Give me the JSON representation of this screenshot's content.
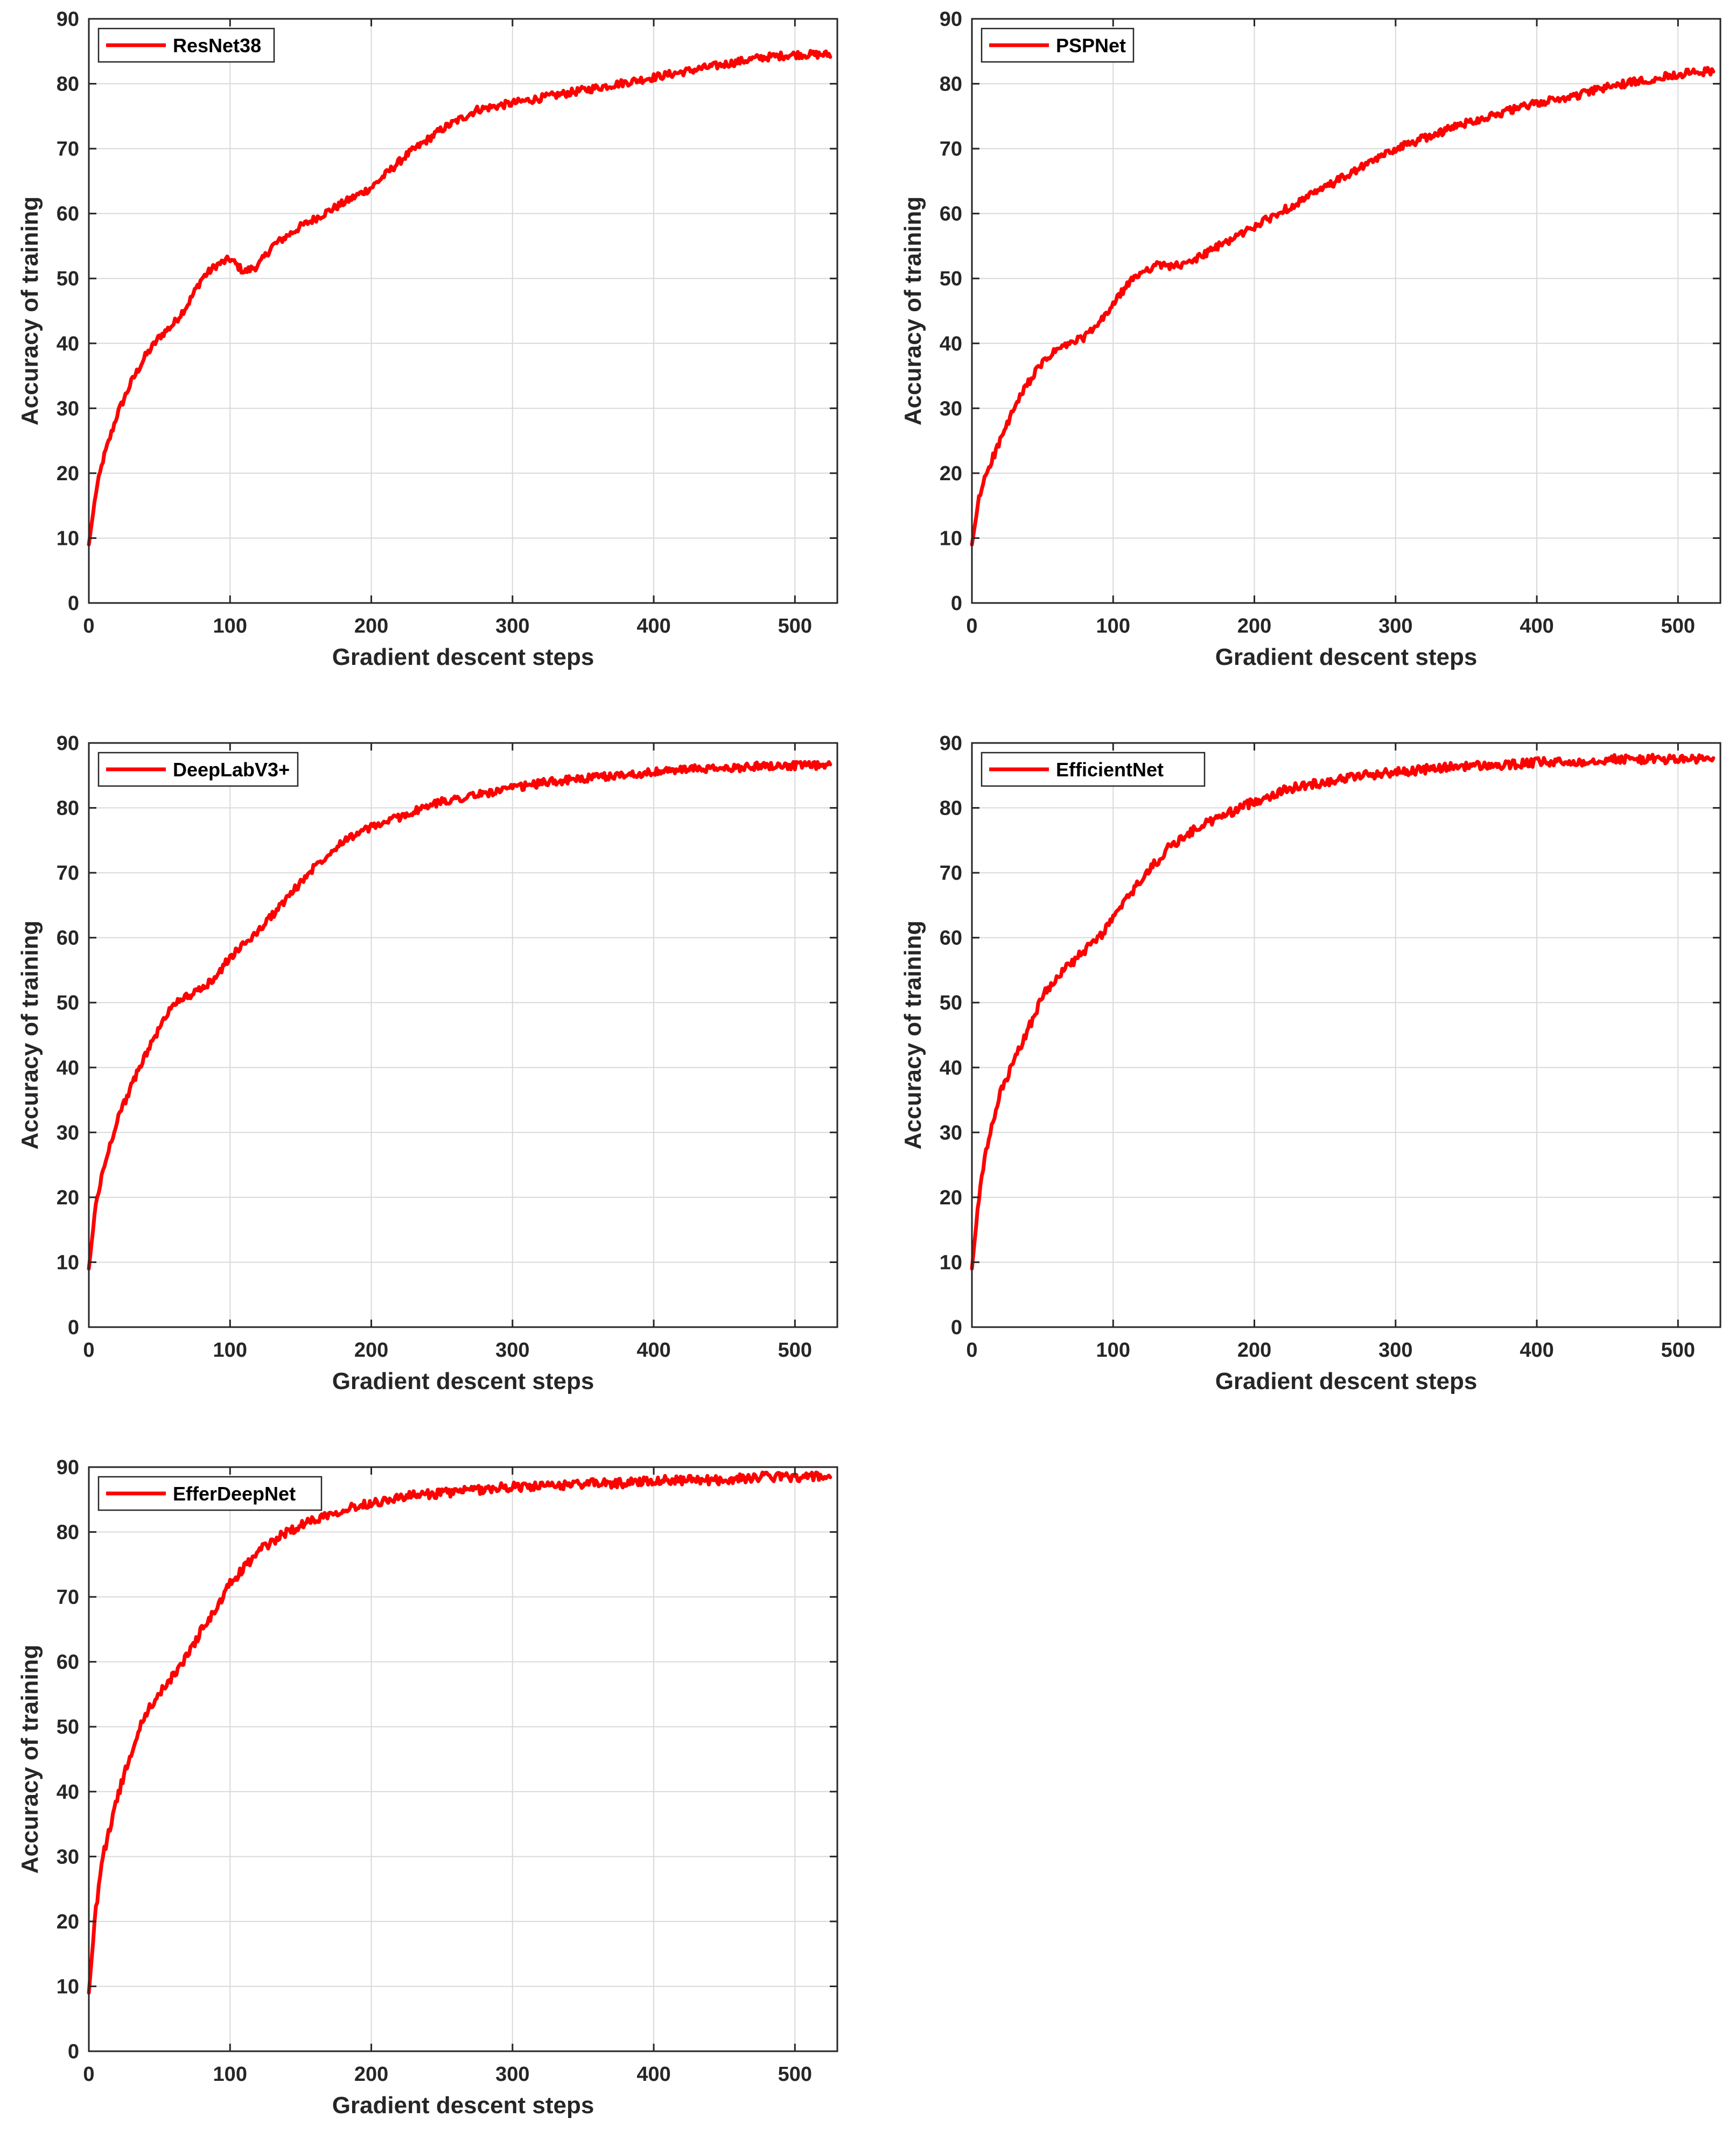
{
  "colors": {
    "series": "#ff0000",
    "grid": "#d9d9d9",
    "axis": "#262626",
    "background": "#ffffff"
  },
  "chart_data": [
    {
      "type": "line",
      "xlabel": "Gradient descent steps",
      "ylabel": "Accuracy of training",
      "xlim": [
        0,
        530
      ],
      "ylim": [
        0,
        90
      ],
      "xticks": [
        0,
        100,
        200,
        300,
        400,
        500
      ],
      "yticks": [
        0,
        10,
        20,
        30,
        40,
        50,
        60,
        70,
        80,
        90
      ],
      "grid": true,
      "legend_position": "top-left",
      "series": [
        {
          "name": "ResNet38",
          "color": "#ff0000",
          "noise": 0.6,
          "x": [
            0,
            5,
            10,
            20,
            30,
            40,
            50,
            60,
            70,
            80,
            90,
            100,
            110,
            120,
            130,
            150,
            175,
            200,
            225,
            250,
            275,
            300,
            325,
            350,
            375,
            400,
            425,
            450,
            475,
            500,
            525
          ],
          "y": [
            9,
            17,
            22,
            29,
            34,
            38,
            41,
            43,
            46,
            50,
            52,
            53,
            51,
            52,
            55,
            58,
            61,
            64,
            69,
            73,
            76,
            77,
            78,
            79,
            80,
            81,
            82,
            83,
            84,
            84.5,
            84.5
          ]
        }
      ]
    },
    {
      "type": "line",
      "xlabel": "Gradient descent steps",
      "ylabel": "Accuracy of training",
      "xlim": [
        0,
        530
      ],
      "ylim": [
        0,
        90
      ],
      "xticks": [
        0,
        100,
        200,
        300,
        400,
        500
      ],
      "yticks": [
        0,
        10,
        20,
        30,
        40,
        50,
        60,
        70,
        80,
        90
      ],
      "grid": true,
      "legend_position": "top-left",
      "series": [
        {
          "name": "PSPNet",
          "color": "#ff0000",
          "noise": 0.6,
          "x": [
            0,
            5,
            10,
            20,
            30,
            40,
            50,
            60,
            70,
            80,
            90,
            100,
            110,
            120,
            130,
            140,
            150,
            175,
            200,
            225,
            250,
            275,
            300,
            325,
            350,
            375,
            400,
            425,
            450,
            475,
            500,
            525
          ],
          "y": [
            9,
            16,
            20,
            25,
            30,
            34,
            37,
            39,
            40,
            41,
            43,
            46,
            49,
            51,
            52,
            52,
            52,
            55,
            58,
            61,
            64,
            67,
            70,
            72,
            74,
            75.5,
            77,
            78,
            79.5,
            80.5,
            81.5,
            82
          ]
        }
      ]
    },
    {
      "type": "line",
      "xlabel": "Gradient descent steps",
      "ylabel": "Accuracy of training",
      "xlim": [
        0,
        530
      ],
      "ylim": [
        0,
        90
      ],
      "xticks": [
        0,
        100,
        200,
        300,
        400,
        500
      ],
      "yticks": [
        0,
        10,
        20,
        30,
        40,
        50,
        60,
        70,
        80,
        90
      ],
      "grid": true,
      "legend_position": "top-left",
      "series": [
        {
          "name": "DeepLabV3+",
          "color": "#ff0000",
          "noise": 0.6,
          "x": [
            0,
            5,
            10,
            20,
            30,
            40,
            50,
            60,
            70,
            80,
            90,
            100,
            120,
            140,
            160,
            180,
            200,
            225,
            250,
            275,
            300,
            325,
            350,
            375,
            400,
            425,
            450,
            475,
            500,
            525
          ],
          "y": [
            9,
            19,
            24,
            32,
            37,
            42,
            46,
            50,
            51,
            52,
            54,
            57,
            61,
            66,
            71,
            75,
            77,
            79,
            81,
            82,
            83,
            84,
            84.5,
            85,
            85.5,
            86,
            86,
            86.5,
            86.5,
            86.5
          ]
        }
      ]
    },
    {
      "type": "line",
      "xlabel": "Gradient descent steps",
      "ylabel": "Accuracy of training",
      "xlim": [
        0,
        530
      ],
      "ylim": [
        0,
        90
      ],
      "xticks": [
        0,
        100,
        200,
        300,
        400,
        500
      ],
      "yticks": [
        0,
        10,
        20,
        30,
        40,
        50,
        60,
        70,
        80,
        90
      ],
      "grid": true,
      "legend_position": "top-left",
      "series": [
        {
          "name": "EfficientNet",
          "color": "#ff0000",
          "noise": 0.7,
          "x": [
            0,
            5,
            10,
            20,
            30,
            40,
            50,
            60,
            70,
            80,
            90,
            100,
            120,
            140,
            160,
            180,
            200,
            225,
            250,
            275,
            300,
            325,
            350,
            375,
            400,
            425,
            450,
            475,
            500,
            525
          ],
          "y": [
            9,
            20,
            27,
            36,
            41,
            46,
            51,
            54,
            56,
            58,
            60,
            63,
            69,
            74,
            77,
            79,
            81,
            83,
            84,
            85,
            85.5,
            86,
            86.5,
            86.5,
            87,
            87,
            87.5,
            87.5,
            87.5,
            87.5
          ]
        }
      ]
    },
    {
      "type": "line",
      "xlabel": "Gradient descent steps",
      "ylabel": "Accuracy of training",
      "xlim": [
        0,
        530
      ],
      "ylim": [
        0,
        90
      ],
      "xticks": [
        0,
        100,
        200,
        300,
        400,
        500
      ],
      "yticks": [
        0,
        10,
        20,
        30,
        40,
        50,
        60,
        70,
        80,
        90
      ],
      "grid": true,
      "legend_position": "top-left",
      "series": [
        {
          "name": "EfferDeepNet",
          "color": "#ff0000",
          "noise": 0.7,
          "x": [
            0,
            5,
            10,
            20,
            30,
            40,
            50,
            60,
            70,
            80,
            90,
            100,
            120,
            140,
            160,
            180,
            200,
            225,
            250,
            275,
            300,
            325,
            350,
            375,
            400,
            425,
            450,
            475,
            500,
            525
          ],
          "y": [
            9,
            22,
            30,
            39,
            46,
            52,
            55,
            58,
            61,
            65,
            68,
            72,
            77,
            80,
            82,
            83.5,
            84.5,
            85.5,
            86,
            86.5,
            87,
            87,
            87.5,
            87.5,
            88,
            88,
            88,
            88.5,
            88.5,
            88.5
          ]
        }
      ]
    }
  ]
}
